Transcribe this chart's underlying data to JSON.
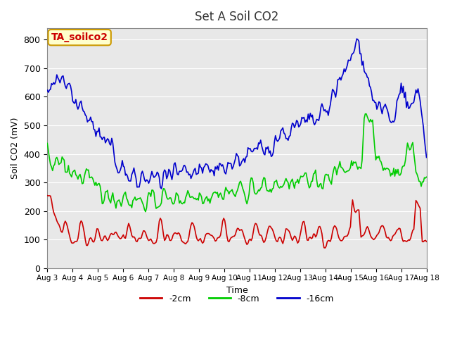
{
  "title": "Set A Soil CO2",
  "xlabel": "Time",
  "ylabel": "Soil CO2 (mV)",
  "ylim": [
    0,
    840
  ],
  "yticks": [
    0,
    100,
    200,
    300,
    400,
    500,
    600,
    700,
    800
  ],
  "bg_color": "#e8e8e8",
  "line_colors": {
    "2cm": "#cc0000",
    "8cm": "#00cc00",
    "16cm": "#0000cc"
  },
  "legend_labels": [
    "-2cm",
    "-8cm",
    "-16cm"
  ],
  "annotation_text": "TA_soilco2",
  "annotation_bg": "#ffffcc",
  "annotation_border": "#cc9900",
  "annotation_text_color": "#cc0000",
  "x_tick_labels": [
    "Aug 3",
    "Aug 4",
    "Aug 5",
    "Aug 6",
    "Aug 7",
    "Aug 8",
    "Aug 9",
    "Aug 10",
    "Aug 11",
    "Aug 12",
    "Aug 13",
    "Aug 14",
    "Aug 15",
    "Aug 16",
    "Aug 17",
    "Aug 18"
  ],
  "n_points": 360,
  "seed": 42
}
